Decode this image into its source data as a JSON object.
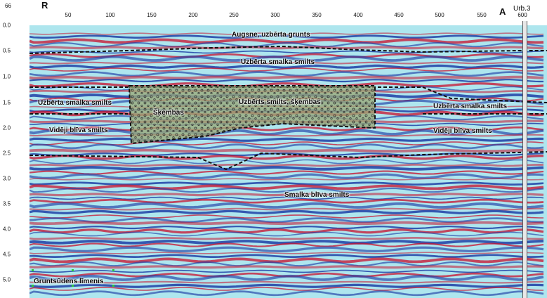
{
  "header": {
    "origin_label": "66",
    "start_marker": "R",
    "end_marker": "A",
    "borehole_label": "Urb.3",
    "distance_ticks": [
      "50",
      "100",
      "150",
      "200",
      "250",
      "300",
      "350",
      "400",
      "450",
      "500",
      "550",
      "600"
    ]
  },
  "depth_axis": {
    "ticks": [
      "0.0",
      "0.5",
      "1.0",
      "1.5",
      "2.0",
      "2.5",
      "3.0",
      "3.5",
      "4.0",
      "4.5",
      "5.0"
    ]
  },
  "layers": {
    "topsoil": "Augsne, uzbērta grunts",
    "fill_sand_top": "Uzbērta smalka smilts",
    "fill_sand_left": "Uzbērta smalka smilts",
    "fill_sand_right": "Uzbērta smalka smilts",
    "rubble_fill": "Uzbērts smilts, šķembas",
    "rubble_small": "Šķembas",
    "medium_sand_left": "Vidēji blīva smilts",
    "medium_sand_right": "Vidēji blīva smilts",
    "dense_sand": "Smalka blīva smilts",
    "groundwater": "Gruntsūdens līmenis"
  },
  "colors": {
    "reflection_positive": "#c8102e",
    "reflection_negative": "#1f3fa6",
    "background_cyan": "#aee6ee",
    "rubble_fill": "#9aa878"
  }
}
